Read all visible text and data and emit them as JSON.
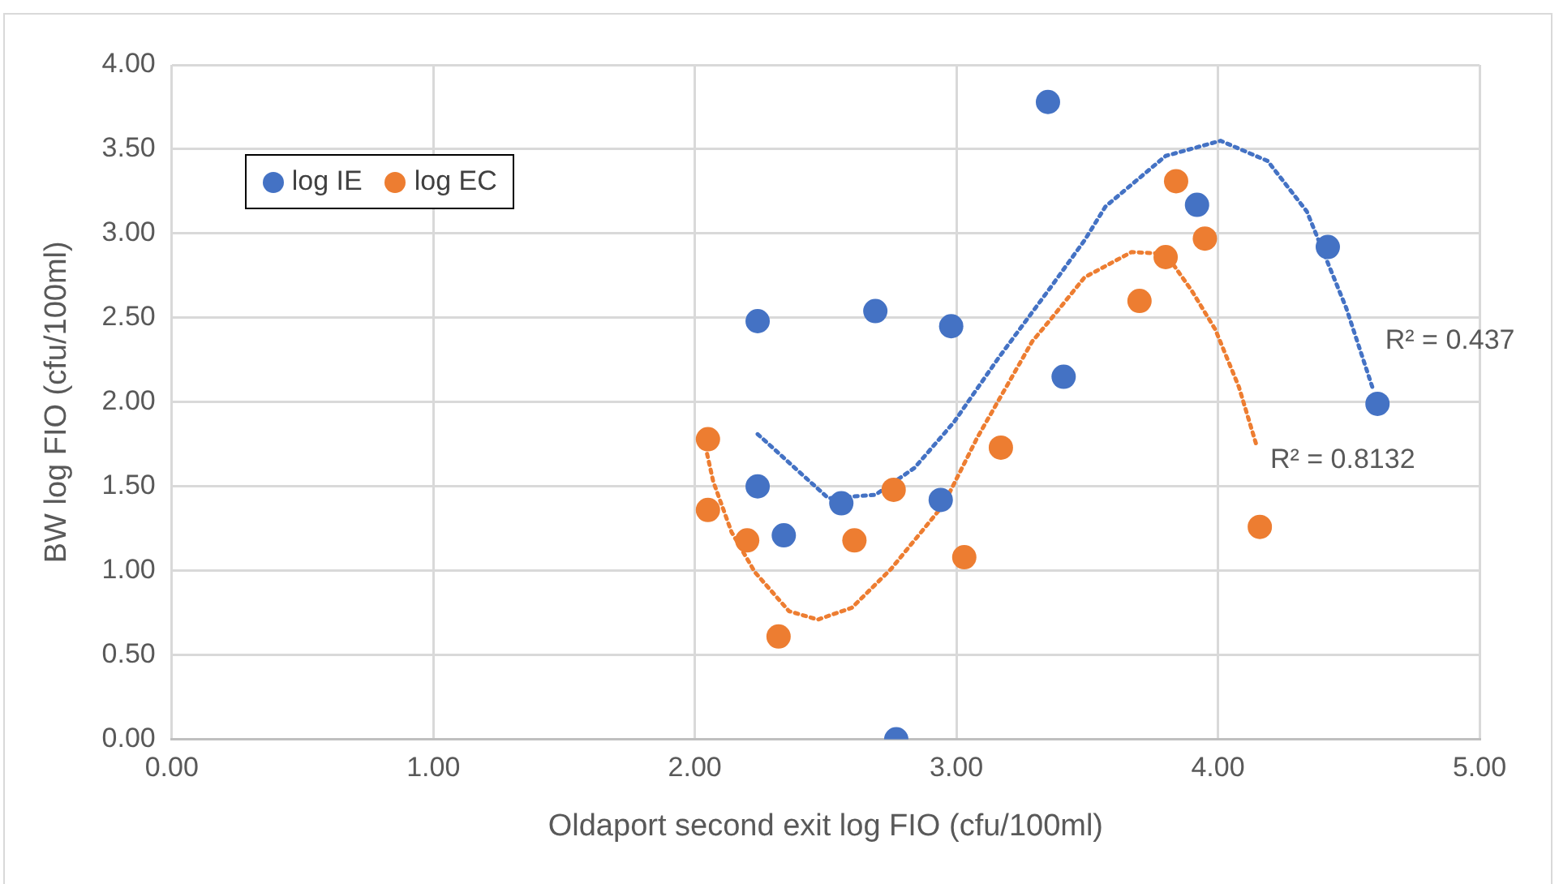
{
  "chart_data": {
    "type": "scatter",
    "xlabel": "Oldaport second exit log FIO (cfu/100ml)",
    "ylabel": "BW log FIO (cfu/100ml)",
    "xlim": [
      0,
      5
    ],
    "xticks": [
      {
        "value": 0,
        "label": "0.00"
      },
      {
        "value": 1,
        "label": "1.00"
      },
      {
        "value": 2,
        "label": "2.00"
      },
      {
        "value": 3,
        "label": "3.00"
      },
      {
        "value": 4,
        "label": "4.00"
      },
      {
        "value": 5,
        "label": "5.00"
      }
    ],
    "ylim": [
      0,
      4
    ],
    "yticks": [
      {
        "value": 0,
        "label": "0.00"
      },
      {
        "value": 0.5,
        "label": "0.50"
      },
      {
        "value": 1,
        "label": "1.00"
      },
      {
        "value": 1.5,
        "label": "1.50"
      },
      {
        "value": 2,
        "label": "2.00"
      },
      {
        "value": 2.5,
        "label": "2.50"
      },
      {
        "value": 3,
        "label": "3.00"
      },
      {
        "value": 3.5,
        "label": "3.50"
      },
      {
        "value": 4,
        "label": "4.00"
      }
    ],
    "grid": true,
    "legend": "top left",
    "marker": "circle",
    "series": [
      {
        "name": "log IE",
        "color": "#4472c4",
        "x": [
          2.24,
          2.24,
          2.34,
          2.56,
          2.69,
          2.77,
          2.94,
          2.98,
          3.35,
          3.41,
          3.92,
          4.42,
          4.61
        ],
        "values": [
          2.48,
          1.5,
          1.21,
          1.4,
          2.54,
          0,
          1.42,
          2.45,
          3.78,
          2.15,
          3.17,
          2.92,
          1.99
        ]
      },
      {
        "name": "log EC",
        "color": "#ed7d31",
        "x": [
          2.05,
          2.05,
          2.2,
          2.32,
          2.61,
          2.76,
          3.03,
          3.17,
          3.7,
          3.8,
          3.84,
          3.95,
          4.16
        ],
        "values": [
          1.78,
          1.36,
          1.18,
          0.61,
          1.18,
          1.48,
          1.08,
          1.73,
          2.6,
          2.86,
          3.31,
          2.97,
          1.26
        ]
      },
      {
        "type": "line",
        "color": "#4472c4",
        "line_style": "dotted",
        "marker": "none",
        "x": [
          2.24,
          2.51,
          2.69,
          2.84,
          2.99,
          3.16,
          3.36,
          3.49,
          3.57,
          3.8,
          4.01,
          4.19,
          4.34,
          4.49,
          4.59
        ],
        "values": [
          1.81,
          1.43,
          1.45,
          1.61,
          1.88,
          2.26,
          2.68,
          2.96,
          3.16,
          3.46,
          3.55,
          3.43,
          3.13,
          2.56,
          2.09
        ]
      },
      {
        "type": "line",
        "color": "#ed7d31",
        "line_style": "dotted",
        "marker": "none",
        "x": [
          2.04,
          2.07,
          2.14,
          2.23,
          2.36,
          2.47,
          2.6,
          2.75,
          2.95,
          3.08,
          3.29,
          3.36,
          3.49,
          3.67,
          3.8,
          3.9,
          3.99,
          4.08,
          4.15
        ],
        "values": [
          1.74,
          1.53,
          1.23,
          0.99,
          0.76,
          0.71,
          0.78,
          1.01,
          1.39,
          1.79,
          2.36,
          2.49,
          2.74,
          2.89,
          2.88,
          2.66,
          2.43,
          2.09,
          1.73
        ]
      }
    ],
    "annotations": [
      "R² = 0.437",
      "R² = 0.8132"
    ]
  }
}
